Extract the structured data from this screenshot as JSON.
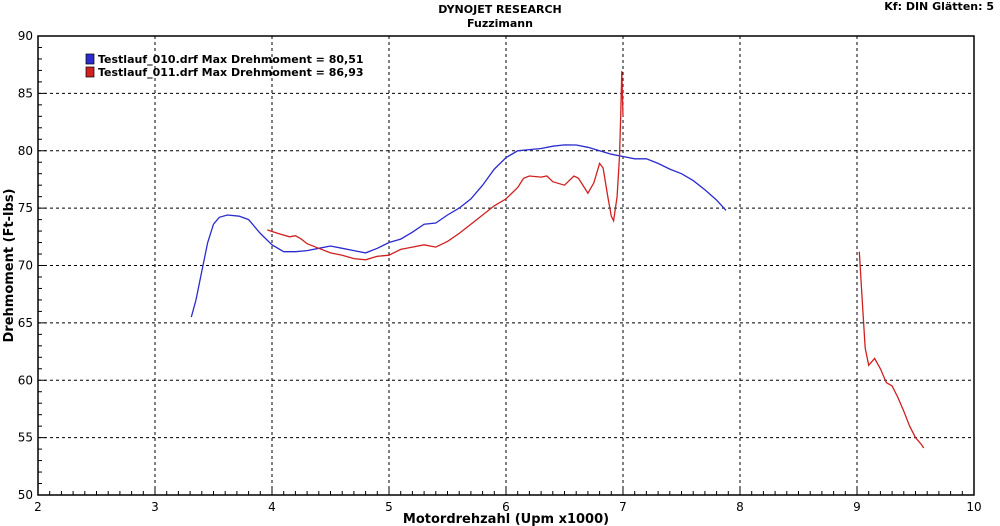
{
  "header": {
    "title": "DYNOJET RESEARCH",
    "subtitle": "Fuzzimann",
    "settings": "Kf: DIN  Glätten: 5"
  },
  "chart_data": {
    "type": "line",
    "xlabel": "Motordrehzahl (Upm x1000)",
    "ylabel": "Drehmoment (Ft-lbs)",
    "xlim": [
      2,
      10
    ],
    "ylim": [
      50,
      90
    ],
    "xticks": [
      2,
      3,
      4,
      5,
      6,
      7,
      8,
      9,
      10
    ],
    "yticks": [
      50,
      55,
      60,
      65,
      70,
      75,
      80,
      85,
      90
    ],
    "grid": true,
    "legend_position": "top-left",
    "series": [
      {
        "name": "Testlauf_010.drf Max Drehmoment = 80,51",
        "color": "#2b2bd0",
        "points": [
          [
            3.31,
            65.5
          ],
          [
            3.35,
            67.0
          ],
          [
            3.4,
            69.5
          ],
          [
            3.45,
            72.0
          ],
          [
            3.5,
            73.6
          ],
          [
            3.55,
            74.2
          ],
          [
            3.62,
            74.4
          ],
          [
            3.72,
            74.3
          ],
          [
            3.8,
            74.0
          ],
          [
            3.9,
            72.8
          ],
          [
            4.0,
            71.8
          ],
          [
            4.1,
            71.2
          ],
          [
            4.2,
            71.2
          ],
          [
            4.3,
            71.3
          ],
          [
            4.4,
            71.5
          ],
          [
            4.5,
            71.7
          ],
          [
            4.6,
            71.5
          ],
          [
            4.7,
            71.3
          ],
          [
            4.8,
            71.1
          ],
          [
            4.9,
            71.5
          ],
          [
            5.0,
            72.0
          ],
          [
            5.1,
            72.3
          ],
          [
            5.2,
            72.9
          ],
          [
            5.3,
            73.6
          ],
          [
            5.4,
            73.7
          ],
          [
            5.5,
            74.4
          ],
          [
            5.6,
            75.0
          ],
          [
            5.7,
            75.8
          ],
          [
            5.8,
            77.0
          ],
          [
            5.9,
            78.4
          ],
          [
            6.0,
            79.4
          ],
          [
            6.1,
            80.0
          ],
          [
            6.2,
            80.1
          ],
          [
            6.3,
            80.2
          ],
          [
            6.4,
            80.4
          ],
          [
            6.5,
            80.51
          ],
          [
            6.6,
            80.5
          ],
          [
            6.7,
            80.3
          ],
          [
            6.8,
            80.0
          ],
          [
            6.9,
            79.7
          ],
          [
            7.0,
            79.5
          ],
          [
            7.1,
            79.3
          ],
          [
            7.2,
            79.3
          ],
          [
            7.3,
            78.9
          ],
          [
            7.4,
            78.4
          ],
          [
            7.5,
            78.0
          ],
          [
            7.6,
            77.4
          ],
          [
            7.7,
            76.6
          ],
          [
            7.8,
            75.7
          ],
          [
            7.88,
            74.8
          ]
        ]
      },
      {
        "name": "Testlauf_011.drf Max Drehmoment = 86,93",
        "color": "#d02020",
        "points": [
          [
            3.96,
            73.1
          ],
          [
            4.05,
            72.8
          ],
          [
            4.15,
            72.5
          ],
          [
            4.2,
            72.6
          ],
          [
            4.25,
            72.3
          ],
          [
            4.3,
            71.9
          ],
          [
            4.4,
            71.5
          ],
          [
            4.5,
            71.1
          ],
          [
            4.6,
            70.9
          ],
          [
            4.7,
            70.6
          ],
          [
            4.8,
            70.5
          ],
          [
            4.9,
            70.8
          ],
          [
            5.0,
            70.9
          ],
          [
            5.1,
            71.4
          ],
          [
            5.2,
            71.6
          ],
          [
            5.3,
            71.8
          ],
          [
            5.4,
            71.6
          ],
          [
            5.5,
            72.1
          ],
          [
            5.6,
            72.8
          ],
          [
            5.7,
            73.6
          ],
          [
            5.8,
            74.4
          ],
          [
            5.9,
            75.2
          ],
          [
            6.0,
            75.8
          ],
          [
            6.1,
            76.8
          ],
          [
            6.15,
            77.6
          ],
          [
            6.2,
            77.8
          ],
          [
            6.3,
            77.7
          ],
          [
            6.35,
            77.8
          ],
          [
            6.4,
            77.3
          ],
          [
            6.5,
            77.0
          ],
          [
            6.58,
            77.8
          ],
          [
            6.62,
            77.6
          ],
          [
            6.7,
            76.3
          ],
          [
            6.75,
            77.2
          ],
          [
            6.8,
            78.9
          ],
          [
            6.83,
            78.5
          ],
          [
            6.87,
            76.0
          ],
          [
            6.9,
            74.3
          ],
          [
            6.92,
            73.9
          ],
          [
            6.95,
            76.0
          ],
          [
            6.97,
            79.5
          ],
          [
            6.98,
            83.0
          ],
          [
            6.99,
            86.93
          ],
          [
            7.0,
            83.0
          ]
        ],
        "points_b": [
          [
            9.02,
            71.2
          ],
          [
            9.05,
            66.0
          ],
          [
            9.07,
            62.8
          ],
          [
            9.1,
            61.3
          ],
          [
            9.15,
            61.9
          ],
          [
            9.2,
            61.0
          ],
          [
            9.25,
            59.8
          ],
          [
            9.3,
            59.5
          ],
          [
            9.35,
            58.5
          ],
          [
            9.4,
            57.3
          ],
          [
            9.45,
            56.0
          ],
          [
            9.5,
            55.0
          ],
          [
            9.55,
            54.4
          ],
          [
            9.57,
            54.1
          ]
        ]
      }
    ]
  }
}
